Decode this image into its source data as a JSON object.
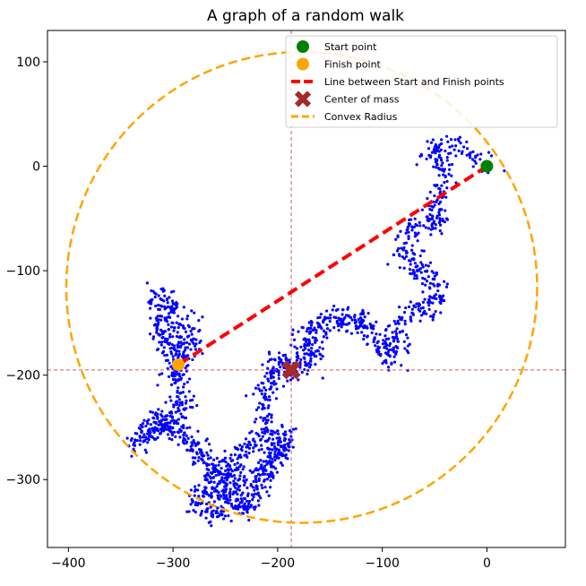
{
  "chart_data": {
    "type": "scatter",
    "title": "A graph of a random walk",
    "xlabel": "",
    "ylabel": "",
    "xlim": [
      -420,
      75
    ],
    "ylim": [
      -365,
      130
    ],
    "xticks": [
      -400,
      -300,
      -200,
      -100,
      0
    ],
    "yticks": [
      100,
      0,
      -100,
      -200,
      -300
    ],
    "xtick_labels": [
      "−400",
      "−300",
      "−200",
      "−100",
      "0"
    ],
    "ytick_labels": [
      "100",
      "0",
      "−100",
      "−200",
      "−300"
    ],
    "grid": false,
    "legend": {
      "placement": "top-right",
      "entries": [
        "Start point",
        "Finish point",
        "Line between Start and Finish points",
        "Center of mass",
        "Convex Radius"
      ]
    },
    "walk_path_approx": [
      [
        0,
        0
      ],
      [
        -30,
        20
      ],
      [
        -55,
        15
      ],
      [
        -40,
        -5
      ],
      [
        -50,
        -40
      ],
      [
        -45,
        -55
      ],
      [
        -75,
        -60
      ],
      [
        -80,
        -90
      ],
      [
        -60,
        -100
      ],
      [
        -45,
        -120
      ],
      [
        -55,
        -135
      ],
      [
        -80,
        -145
      ],
      [
        -95,
        -170
      ],
      [
        -85,
        -185
      ],
      [
        -110,
        -165
      ],
      [
        -120,
        -145
      ],
      [
        -135,
        -150
      ],
      [
        -150,
        -145
      ],
      [
        -165,
        -155
      ],
      [
        -175,
        -170
      ],
      [
        -165,
        -185
      ],
      [
        -185,
        -195
      ],
      [
        -200,
        -185
      ],
      [
        -205,
        -205
      ],
      [
        -215,
        -225
      ],
      [
        -210,
        -255
      ],
      [
        -225,
        -265
      ],
      [
        -240,
        -285
      ],
      [
        -255,
        -290
      ],
      [
        -245,
        -310
      ],
      [
        -235,
        -330
      ],
      [
        -220,
        -315
      ],
      [
        -210,
        -290
      ],
      [
        -200,
        -270
      ],
      [
        -190,
        -255
      ],
      [
        -200,
        -280
      ],
      [
        -225,
        -300
      ],
      [
        -260,
        -300
      ],
      [
        -280,
        -320
      ],
      [
        -260,
        -335
      ],
      [
        -250,
        -320
      ],
      [
        -265,
        -290
      ],
      [
        -275,
        -270
      ],
      [
        -290,
        -260
      ],
      [
        -305,
        -245
      ],
      [
        -315,
        -255
      ],
      [
        -335,
        -265
      ],
      [
        -320,
        -245
      ],
      [
        -300,
        -240
      ],
      [
        -290,
        -225
      ],
      [
        -300,
        -200
      ],
      [
        -295,
        -185
      ],
      [
        -300,
        -170
      ],
      [
        -315,
        -160
      ],
      [
        -305,
        -140
      ],
      [
        -315,
        -120
      ],
      [
        -290,
        -150
      ],
      [
        -280,
        -165
      ],
      [
        -295,
        -190
      ]
    ],
    "walk_point_count": 2000,
    "walk_color": "#0000ff",
    "start_point": {
      "x": 0,
      "y": 0,
      "color": "#008000"
    },
    "finish_point": {
      "x": -295,
      "y": -190,
      "color": "#ffa500"
    },
    "center_of_mass": {
      "x": -187,
      "y": -195,
      "color": "#a52a2a"
    },
    "convex_circle": {
      "cx": -177,
      "cy": -116,
      "r": 225,
      "color": "#ffa500"
    },
    "line_color": "#ff0000",
    "crosshair_color": "#cd5c5c"
  }
}
